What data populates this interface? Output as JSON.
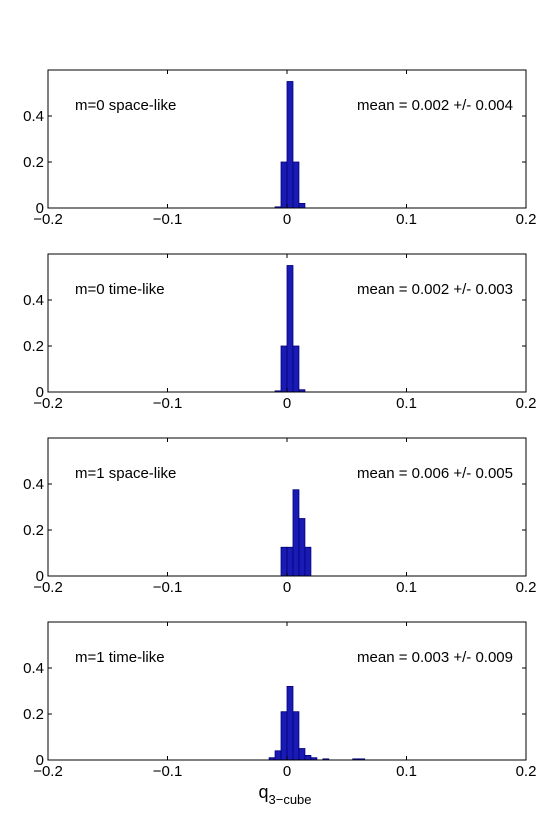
{
  "chart_data": [
    {
      "type": "bar",
      "label": "m=0 space-like",
      "annotation": "mean = 0.002 +/- 0.004",
      "xlim": [
        -0.2,
        0.2
      ],
      "ylim": [
        0,
        0.6
      ],
      "xticks": [
        "−0.2",
        "−0.1",
        "0",
        "0.1",
        "0.2"
      ],
      "yticks": [
        "0",
        "0.2",
        "0.4"
      ],
      "bin_width": 0.005,
      "bins": [
        {
          "x": -0.0075,
          "y": 0.005
        },
        {
          "x": -0.0025,
          "y": 0.2
        },
        {
          "x": 0.0025,
          "y": 0.55
        },
        {
          "x": 0.0075,
          "y": 0.2
        },
        {
          "x": 0.0125,
          "y": 0.02
        }
      ]
    },
    {
      "type": "bar",
      "label": "m=0 time-like",
      "annotation": "mean = 0.002 +/- 0.003",
      "xlim": [
        -0.2,
        0.2
      ],
      "ylim": [
        0,
        0.6
      ],
      "xticks": [
        "−0.2",
        "−0.1",
        "0",
        "0.1",
        "0.2"
      ],
      "yticks": [
        "0",
        "0.2",
        "0.4"
      ],
      "bin_width": 0.005,
      "bins": [
        {
          "x": -0.0075,
          "y": 0.005
        },
        {
          "x": -0.0025,
          "y": 0.2
        },
        {
          "x": 0.0025,
          "y": 0.55
        },
        {
          "x": 0.0075,
          "y": 0.2
        },
        {
          "x": 0.0125,
          "y": 0.01
        }
      ]
    },
    {
      "type": "bar",
      "label": "m=1 space-like",
      "annotation": "mean = 0.006 +/- 0.005",
      "xlim": [
        -0.2,
        0.2
      ],
      "ylim": [
        0,
        0.6
      ],
      "xticks": [
        "−0.2",
        "−0.1",
        "0",
        "0.1",
        "0.2"
      ],
      "yticks": [
        "0",
        "0.2",
        "0.4"
      ],
      "bin_width": 0.005,
      "bins": [
        {
          "x": -0.0025,
          "y": 0.125
        },
        {
          "x": 0.0025,
          "y": 0.125
        },
        {
          "x": 0.0075,
          "y": 0.375
        },
        {
          "x": 0.0125,
          "y": 0.25
        },
        {
          "x": 0.0175,
          "y": 0.125
        }
      ]
    },
    {
      "type": "bar",
      "label": "m=1 time-like",
      "annotation": "mean = 0.003 +/- 0.009",
      "xlim": [
        -0.2,
        0.2
      ],
      "ylim": [
        0,
        0.6
      ],
      "xticks": [
        "−0.2",
        "−0.1",
        "0",
        "0.1",
        "0.2"
      ],
      "yticks": [
        "0",
        "0.2",
        "0.4"
      ],
      "xlabel_main": "q",
      "xlabel_sub": "3−cube",
      "bin_width": 0.005,
      "bins": [
        {
          "x": -0.0125,
          "y": 0.01
        },
        {
          "x": -0.0075,
          "y": 0.04
        },
        {
          "x": -0.0025,
          "y": 0.21
        },
        {
          "x": 0.0025,
          "y": 0.32
        },
        {
          "x": 0.0075,
          "y": 0.21
        },
        {
          "x": 0.0125,
          "y": 0.05
        },
        {
          "x": 0.0175,
          "y": 0.02
        },
        {
          "x": 0.0225,
          "y": 0.01
        },
        {
          "x": 0.0325,
          "y": 0.005
        },
        {
          "x": 0.0575,
          "y": 0.005
        },
        {
          "x": 0.0625,
          "y": 0.005
        }
      ]
    }
  ],
  "colors": {
    "bar_fill": "#1a1ab4",
    "bar_edge": "#00007a",
    "axis": "#000000",
    "background": "#ffffff"
  }
}
